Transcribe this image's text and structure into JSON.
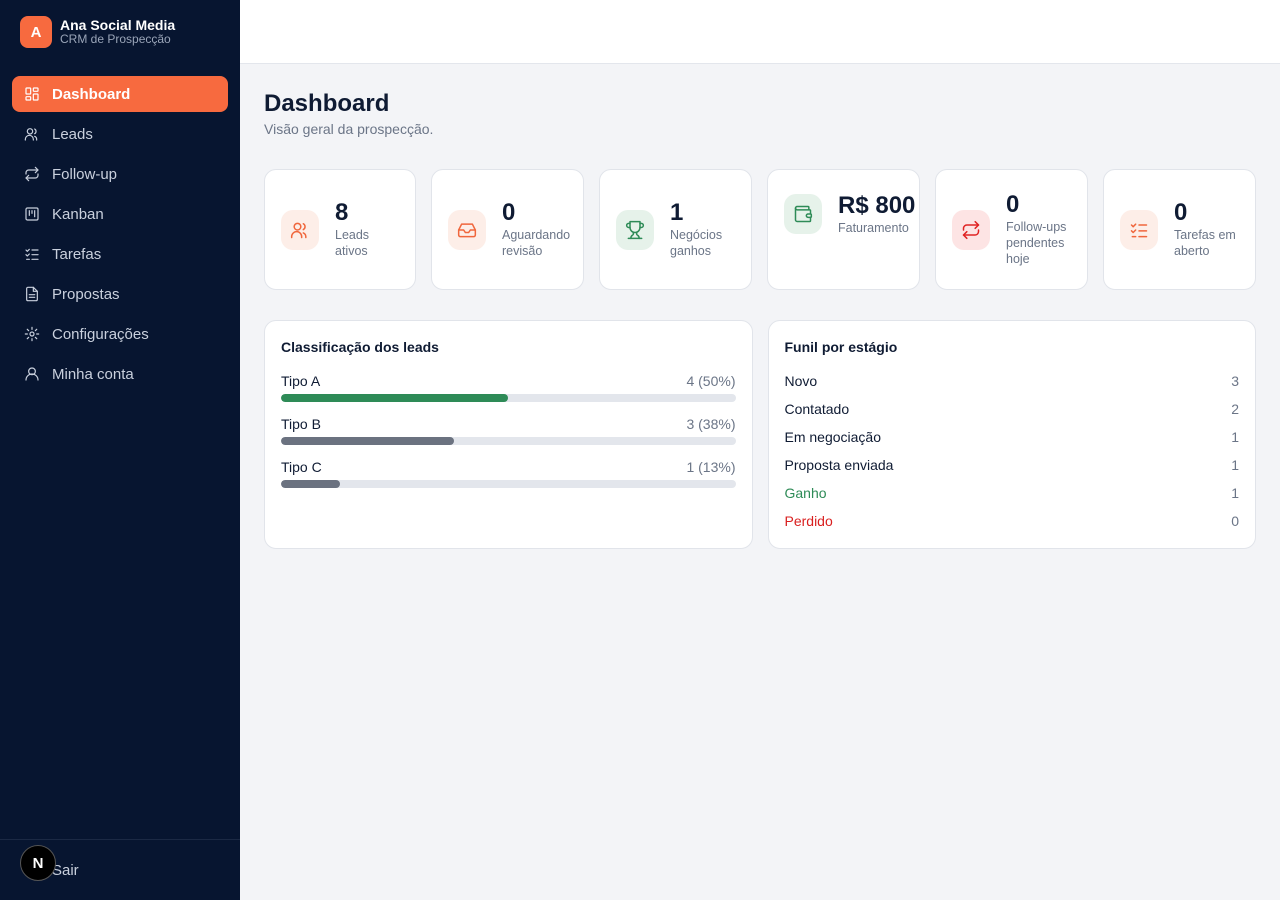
{
  "brand": {
    "initial": "A",
    "name": "Ana Social Media",
    "subtitle": "CRM de Prospecção"
  },
  "nav": [
    {
      "label": "Dashboard",
      "icon": "dashboard-icon",
      "active": true
    },
    {
      "label": "Leads",
      "icon": "users-icon",
      "active": false
    },
    {
      "label": "Follow-up",
      "icon": "repeat-icon",
      "active": false
    },
    {
      "label": "Kanban",
      "icon": "kanban-icon",
      "active": false
    },
    {
      "label": "Tarefas",
      "icon": "checklist-icon",
      "active": false
    },
    {
      "label": "Propostas",
      "icon": "document-icon",
      "active": false
    },
    {
      "label": "Configurações",
      "icon": "gear-icon",
      "active": false
    },
    {
      "label": "Minha conta",
      "icon": "user-icon",
      "active": false
    }
  ],
  "footer": {
    "logout_label": "Sair",
    "badge": "N"
  },
  "page": {
    "title": "Dashboard",
    "subtitle": "Visão geral da prospecção."
  },
  "stats": [
    {
      "value": "8",
      "label": "Leads ativos",
      "icon": "users-icon",
      "color": "#f0663c",
      "bg": "#fdeee8"
    },
    {
      "value": "0",
      "label": "Aguardando revisão",
      "icon": "inbox-icon",
      "color": "#f0663c",
      "bg": "#fdeee8"
    },
    {
      "value": "1",
      "label": "Negócios ganhos",
      "icon": "trophy-icon",
      "color": "#2e8b57",
      "bg": "#e6f2ea"
    },
    {
      "value": "R$ 800",
      "label": "Faturamento",
      "icon": "wallet-icon",
      "color": "#2e8b57",
      "bg": "#e6f2ea"
    },
    {
      "value": "0",
      "label": "Follow-ups pendentes hoje",
      "icon": "repeat-icon",
      "color": "#e02424",
      "bg": "#fde4e4"
    },
    {
      "value": "0",
      "label": "Tarefas em aberto",
      "icon": "checklist-icon",
      "color": "#f0663c",
      "bg": "#fdeee8"
    }
  ],
  "classification": {
    "title": "Classificação dos leads",
    "rows": [
      {
        "label": "Tipo A",
        "count": "4 (50%)",
        "fraction": 0.5,
        "color": "#2e8b57"
      },
      {
        "label": "Tipo B",
        "count": "3 (38%)",
        "fraction": 0.38,
        "color": "#6b7280"
      },
      {
        "label": "Tipo C",
        "count": "1 (13%)",
        "fraction": 0.13,
        "color": "#6b7280"
      }
    ]
  },
  "funnel": {
    "title": "Funil por estágio",
    "rows": [
      {
        "label": "Novo",
        "count": "3",
        "color": "#0f1b33"
      },
      {
        "label": "Contatado",
        "count": "2",
        "color": "#0f1b33"
      },
      {
        "label": "Em negociação",
        "count": "1",
        "color": "#0f1b33"
      },
      {
        "label": "Proposta enviada",
        "count": "1",
        "color": "#0f1b33"
      },
      {
        "label": "Ganho",
        "count": "1",
        "color": "#2e8b57"
      },
      {
        "label": "Perdido",
        "count": "0",
        "color": "#d92020"
      }
    ]
  }
}
